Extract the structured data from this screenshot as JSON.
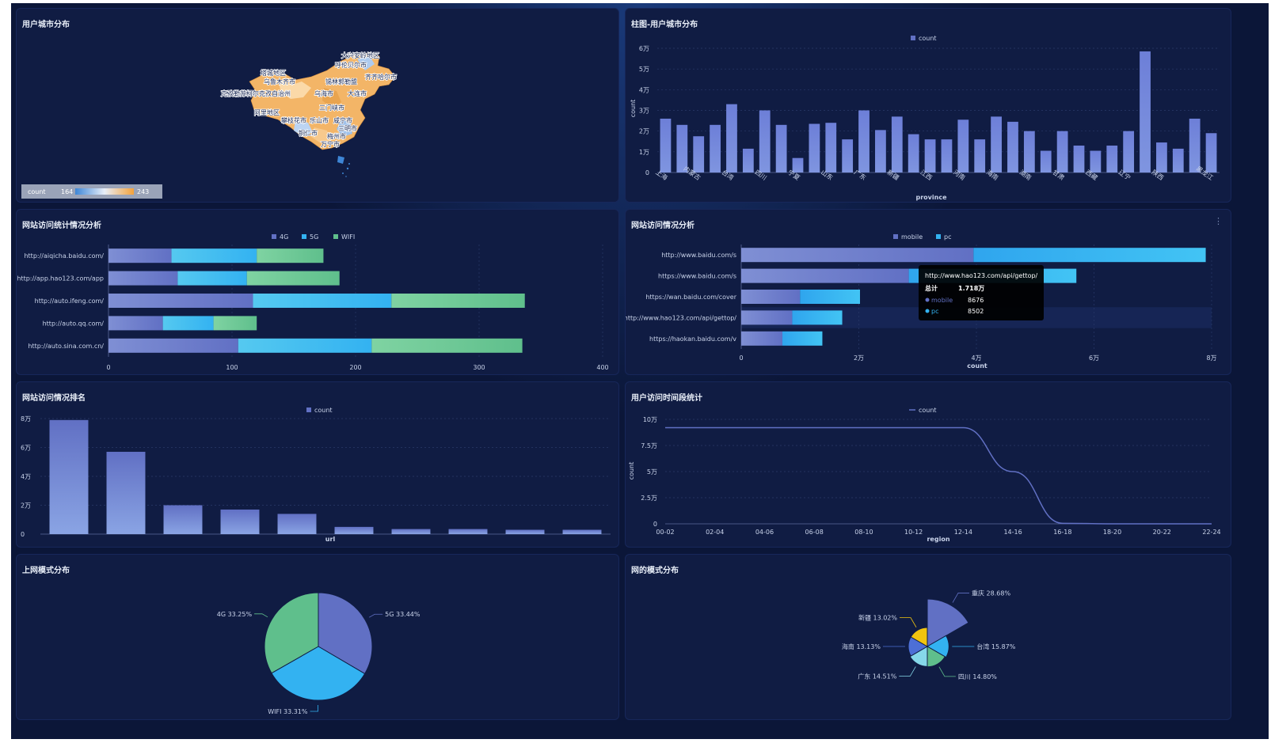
{
  "colors": {
    "bg": "#0b1638",
    "panel": "#101c43",
    "blue_purple": "#6170c4",
    "cyan": "#33b2f1",
    "green": "#5fbf8c",
    "yellow": "#f1c40f",
    "light_cyan": "#86d8e9",
    "axis_text": "#c9d3ea"
  },
  "panels": {
    "map": {
      "title": "用户城市分布",
      "legend": {
        "label": "count",
        "min": "164",
        "max": "243"
      },
      "place_labels": [
        "大兴安岭地区",
        "呼伦贝尔市",
        "塔城地区",
        "乌鲁木齐市",
        "锡林郭勒盟",
        "齐齐哈尔市",
        "克孜勒苏柯尔克孜自治州",
        "乌海市",
        "大连市",
        "三门峡市",
        "阿里地区",
        "攀枝花市",
        "乐山市",
        "咸宁市",
        "三明市",
        "铜仁市",
        "梅州市",
        "万宁市"
      ]
    },
    "city_bar": {
      "title": "柱图-用户城市分布",
      "legend": "count",
      "xlabel": "province",
      "ylabel": "count"
    },
    "site_stack": {
      "title": "网站访问统计情况分析",
      "legend": [
        "4G",
        "5G",
        "WIFI"
      ]
    },
    "site_mobile": {
      "title": "网站访问情况分析",
      "legend": [
        "mobile",
        "pc"
      ],
      "xlabel": "count",
      "tooltip": {
        "title": "http://www.hao123.com/api/gettop/",
        "total_label": "总计",
        "total_value": "1.718万",
        "rows": [
          {
            "name": "mobile",
            "value": "8676"
          },
          {
            "name": "pc",
            "value": "8502"
          }
        ]
      }
    },
    "site_rank": {
      "title": "网站访问情况排名",
      "legend": "count",
      "xlabel": "url"
    },
    "time_line": {
      "title": "用户访问时间段统计",
      "legend": "count",
      "xlabel": "region",
      "ylabel": "count"
    },
    "net_pie": {
      "title": "上网模式分布",
      "labels": [
        "5G 33.44%",
        "WIFI 33.31%",
        "4G 33.25%"
      ]
    },
    "rose": {
      "title": "网的模式分布",
      "labels": [
        "重庆 28.68%",
        "台湾 15.87%",
        "四川 14.80%",
        "广东 14.51%",
        "海南 13.13%",
        "新疆 13.02%"
      ]
    }
  },
  "chart_data": [
    {
      "id": "city_bar",
      "type": "bar",
      "title": "柱图-用户城市分布",
      "xlabel": "province",
      "ylabel": "count",
      "ylim": [
        0,
        60000
      ],
      "yticks": [
        "0",
        "1万",
        "2万",
        "3万",
        "4万",
        "5万",
        "6万"
      ],
      "category_labels": [
        "上海",
        "",
        "内蒙古",
        "",
        "台湾",
        "",
        "四川",
        "",
        "宁夏",
        "",
        "山东",
        "",
        "广东",
        "",
        "新疆",
        "",
        "江西",
        "",
        "河南",
        "",
        "海南",
        "",
        "湖南",
        "",
        "甘肃",
        "",
        "西藏",
        "",
        "辽宁",
        "",
        "陕西",
        "",
        "",
        "黑龙江"
      ],
      "values": [
        26000,
        23000,
        17500,
        23000,
        33000,
        11500,
        30000,
        23000,
        7000,
        23500,
        24000,
        16000,
        30000,
        20500,
        27000,
        18500,
        16000,
        16000,
        25500,
        16000,
        27000,
        24500,
        20000,
        10500,
        20000,
        13000,
        10500,
        13000,
        20000,
        58500,
        14500,
        11500,
        26000,
        19000
      ]
    },
    {
      "id": "site_stack",
      "type": "bar",
      "orientation": "horizontal",
      "stacked": true,
      "title": "网站访问统计情况分析",
      "categories": [
        "http://aiqicha.baidu.com/",
        "http://app.hao123.com/app",
        "http://auto.ifeng.com/",
        "http://auto.qq.com/",
        "http://auto.sina.com.cn/"
      ],
      "series": [
        {
          "name": "4G",
          "values": [
            51,
            56,
            117,
            44,
            105
          ]
        },
        {
          "name": "5G",
          "values": [
            69,
            56,
            112,
            41,
            108
          ]
        },
        {
          "name": "WIFI",
          "values": [
            54,
            75,
            108,
            35,
            122
          ]
        }
      ],
      "xlim": [
        0,
        400
      ],
      "xticks": [
        "0",
        "100",
        "200",
        "300",
        "400"
      ]
    },
    {
      "id": "site_mobile",
      "type": "bar",
      "orientation": "horizontal",
      "stacked": true,
      "title": "网站访问情况分析",
      "xlabel": "count",
      "categories": [
        "http://www.baidu.com/s",
        "https://www.baidu.com/s",
        "https://wan.baidu.com/cover",
        "http://www.hao123.com/api/gettop/",
        "https://haokan.baidu.com/v"
      ],
      "series": [
        {
          "name": "mobile",
          "values": [
            39500,
            28500,
            10000,
            8676,
            7000
          ]
        },
        {
          "name": "pc",
          "values": [
            39500,
            28500,
            10200,
            8502,
            6800
          ]
        }
      ],
      "xlim": [
        0,
        80000
      ],
      "xticks": [
        "0",
        "2万",
        "4万",
        "6万",
        "8万"
      ]
    },
    {
      "id": "site_rank",
      "type": "bar",
      "title": "网站访问情况排名",
      "xlabel": "url",
      "ylim": [
        0,
        80000
      ],
      "yticks": [
        "0",
        "2万",
        "4万",
        "6万",
        "8万"
      ],
      "values": [
        79000,
        57000,
        20000,
        17000,
        14000,
        5000,
        3500,
        3500,
        3000,
        3000
      ]
    },
    {
      "id": "time_line",
      "type": "line",
      "title": "用户访问时间段统计",
      "xlabel": "region",
      "ylabel": "count",
      "categories": [
        "00-02",
        "02-04",
        "04-06",
        "06-08",
        "08-10",
        "10-12",
        "12-14",
        "14-16",
        "16-18",
        "18-20",
        "20-22",
        "22-24"
      ],
      "values": [
        92000,
        92000,
        92000,
        92000,
        92000,
        92000,
        92000,
        50000,
        500,
        0,
        0,
        0
      ],
      "ylim": [
        0,
        100000
      ],
      "yticks": [
        "0",
        "2.5万",
        "5万",
        "7.5万",
        "10万"
      ]
    },
    {
      "id": "net_pie",
      "type": "pie",
      "title": "上网模式分布",
      "series": [
        {
          "name": "5G",
          "value": 33.44
        },
        {
          "name": "WIFI",
          "value": 33.31
        },
        {
          "name": "4G",
          "value": 33.25
        }
      ]
    },
    {
      "id": "rose",
      "type": "pie",
      "subtype": "rose",
      "title": "网的模式分布",
      "series": [
        {
          "name": "重庆",
          "value": 28.68
        },
        {
          "name": "台湾",
          "value": 15.87
        },
        {
          "name": "四川",
          "value": 14.8
        },
        {
          "name": "广东",
          "value": 14.51
        },
        {
          "name": "海南",
          "value": 13.13
        },
        {
          "name": "新疆",
          "value": 13.02
        }
      ]
    }
  ]
}
